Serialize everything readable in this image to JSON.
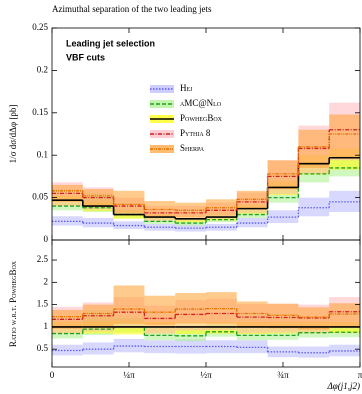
{
  "chart_data": [
    {
      "type": "histogram",
      "title": "Azimuthal separation of the two leading jets",
      "annotations": [
        "Leading jet selection",
        "VBF cuts"
      ],
      "ylabel": "1/σ dσ/dΔφ [pb]",
      "bins": [
        0,
        0.314159,
        0.628319,
        0.942478,
        1.256637,
        1.570796,
        1.884956,
        2.199115,
        2.513274,
        2.827433,
        3.141593
      ],
      "xlim": [
        0,
        3.141593
      ],
      "ylim": [
        0,
        0.25
      ],
      "yticks": [
        0,
        0.05,
        0.1,
        0.15,
        0.2,
        0.25
      ],
      "series": [
        {
          "name": "Hej",
          "color": "#5a5af0",
          "band_color": "#b8b8ff",
          "dash": "1.5 1.5",
          "values": [
            0.022,
            0.02,
            0.017,
            0.015,
            0.014,
            0.015,
            0.02,
            0.027,
            0.038,
            0.045
          ],
          "band_low": [
            0.017,
            0.015,
            0.013,
            0.011,
            0.01,
            0.011,
            0.015,
            0.02,
            0.028,
            0.033
          ],
          "band_high": [
            0.028,
            0.026,
            0.022,
            0.019,
            0.018,
            0.019,
            0.026,
            0.035,
            0.05,
            0.058
          ]
        },
        {
          "name": "aMC@Nlo",
          "color": "#22a022",
          "band_color": "#a8f08a",
          "dash": "4 2",
          "values": [
            0.04,
            0.038,
            0.03,
            0.022,
            0.02,
            0.024,
            0.03,
            0.05,
            0.078,
            0.085
          ],
          "band_low": [
            0.035,
            0.033,
            0.026,
            0.019,
            0.017,
            0.021,
            0.026,
            0.044,
            0.068,
            0.075
          ],
          "band_high": [
            0.048,
            0.055,
            0.036,
            0.027,
            0.025,
            0.029,
            0.036,
            0.06,
            0.092,
            0.1
          ]
        },
        {
          "name": "PowhegBox",
          "color": "#000000",
          "band_color": "#ffff00",
          "dash": "none",
          "values": [
            0.047,
            0.04,
            0.03,
            0.027,
            0.025,
            0.027,
            0.037,
            0.062,
            0.09,
            0.097
          ],
          "band_low": [
            0.04,
            0.034,
            0.025,
            0.023,
            0.021,
            0.023,
            0.031,
            0.053,
            0.077,
            0.083
          ],
          "band_high": [
            0.052,
            0.045,
            0.034,
            0.03,
            0.028,
            0.03,
            0.041,
            0.069,
            0.1,
            0.108
          ]
        },
        {
          "name": "Pythia 8",
          "color": "#d02020",
          "band_color": "#ffb8c0",
          "dash": "4 1.5 1 1.5",
          "values": [
            0.055,
            0.05,
            0.04,
            0.032,
            0.032,
            0.035,
            0.045,
            0.075,
            0.108,
            0.13
          ],
          "band_low": [
            0.04,
            0.036,
            0.029,
            0.023,
            0.023,
            0.025,
            0.032,
            0.054,
            0.078,
            0.094
          ],
          "band_high": [
            0.068,
            0.062,
            0.05,
            0.04,
            0.04,
            0.044,
            0.056,
            0.094,
            0.135,
            0.162
          ]
        },
        {
          "name": "Sherpa",
          "color": "#e07000",
          "band_color": "#ffa030",
          "dash": "3 1 1 1 1 1",
          "values": [
            0.058,
            0.052,
            0.042,
            0.036,
            0.035,
            0.038,
            0.048,
            0.078,
            0.11,
            0.125
          ],
          "band_low": [
            0.045,
            0.04,
            0.032,
            0.028,
            0.027,
            0.029,
            0.037,
            0.06,
            0.085,
            0.096
          ],
          "band_high": [
            0.065,
            0.06,
            0.058,
            0.046,
            0.044,
            0.048,
            0.058,
            0.094,
            0.13,
            0.148
          ]
        }
      ]
    },
    {
      "type": "histogram",
      "ylabel": "Ratio w.r.t. PowhegBox",
      "xlabel": "Δφ(j1,j2)",
      "ylim": [
        0.1,
        2.95
      ],
      "yticks": [
        0.5,
        1,
        1.5,
        2,
        2.5
      ],
      "xticks": [
        {
          "value": 0,
          "label": "0"
        },
        {
          "value": 0.785398,
          "label": "¼π"
        },
        {
          "value": 1.570796,
          "label": "½π"
        },
        {
          "value": 2.356194,
          "label": "¾π"
        },
        {
          "value": 3.141593,
          "label": "π"
        }
      ],
      "series": [
        {
          "color": "#5a5af0",
          "band_color": "#b8b8ff",
          "dash": "1.5 1.5",
          "values": [
            0.47,
            0.5,
            0.57,
            0.56,
            0.56,
            0.56,
            0.54,
            0.44,
            0.42,
            0.46
          ],
          "band_low": [
            0.36,
            0.38,
            0.43,
            0.41,
            0.4,
            0.41,
            0.41,
            0.32,
            0.31,
            0.34
          ],
          "band_high": [
            0.6,
            0.65,
            0.73,
            0.7,
            0.72,
            0.7,
            0.7,
            0.56,
            0.56,
            0.6
          ]
        },
        {
          "color": "#22a022",
          "band_color": "#a8f08a",
          "dash": "4 2",
          "values": [
            0.85,
            0.95,
            1.0,
            0.81,
            0.8,
            0.89,
            0.81,
            0.81,
            0.87,
            0.88
          ],
          "band_low": [
            0.74,
            0.82,
            0.87,
            0.7,
            0.68,
            0.78,
            0.7,
            0.71,
            0.76,
            0.77
          ],
          "band_high": [
            1.02,
            1.38,
            1.2,
            1.0,
            1.0,
            1.07,
            0.97,
            0.97,
            1.02,
            1.03
          ]
        },
        {
          "color": "#000000",
          "band_color": "#ffff00",
          "dash": "none",
          "values": [
            1,
            1,
            1,
            1,
            1,
            1,
            1,
            1,
            1,
            1
          ],
          "band_low": [
            0.85,
            0.85,
            0.83,
            0.85,
            0.84,
            0.85,
            0.84,
            0.85,
            0.86,
            0.86
          ],
          "band_high": [
            1.11,
            1.12,
            1.13,
            1.11,
            1.12,
            1.11,
            1.11,
            1.11,
            1.11,
            1.11
          ]
        },
        {
          "color": "#d02020",
          "band_color": "#ffb8c0",
          "dash": "4 1.5 1 1.5",
          "values": [
            1.17,
            1.25,
            1.33,
            1.19,
            1.28,
            1.3,
            1.22,
            1.21,
            1.2,
            1.34
          ],
          "band_low": [
            0.85,
            0.9,
            0.97,
            0.85,
            0.92,
            0.93,
            0.86,
            0.87,
            0.87,
            0.97
          ],
          "band_high": [
            1.45,
            1.55,
            1.67,
            1.48,
            1.6,
            1.63,
            1.51,
            1.52,
            1.5,
            1.67
          ]
        },
        {
          "color": "#e07000",
          "band_color": "#ffa030",
          "dash": "3 1 1 1 1 1",
          "values": [
            1.23,
            1.3,
            1.4,
            1.33,
            1.4,
            1.41,
            1.3,
            1.26,
            1.22,
            1.29
          ],
          "band_low": [
            0.96,
            1.0,
            1.07,
            1.04,
            1.08,
            1.07,
            0.99,
            0.97,
            0.94,
            0.99
          ],
          "band_high": [
            1.38,
            1.5,
            1.93,
            1.7,
            1.76,
            1.78,
            1.57,
            1.52,
            1.44,
            1.53
          ]
        }
      ]
    }
  ]
}
